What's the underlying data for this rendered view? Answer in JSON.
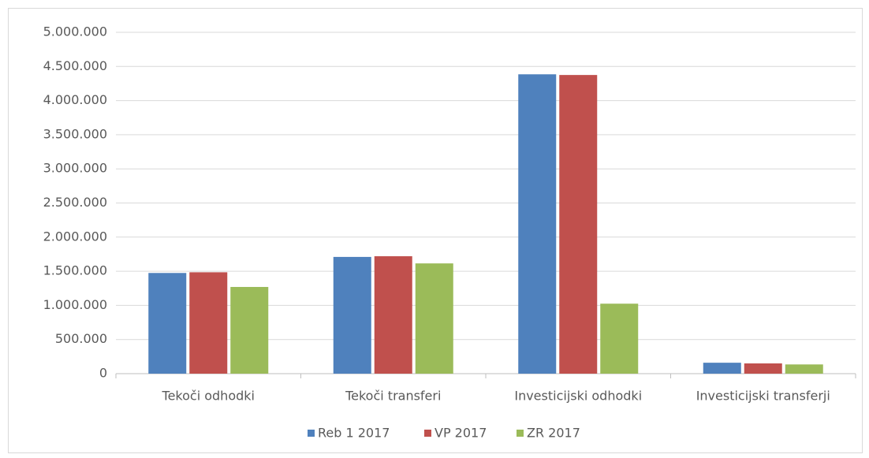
{
  "chart_data": {
    "type": "bar",
    "categories": [
      "Tekoči odhodki",
      "Tekoči transferi",
      "Investicijski odhodki",
      "Investicijski transferji"
    ],
    "series": [
      {
        "name": "Reb 1 2017",
        "color": "#4f81bd",
        "values": [
          1475000,
          1710000,
          4385000,
          160000
        ]
      },
      {
        "name": "VP 2017",
        "color": "#c0504d",
        "values": [
          1485000,
          1720000,
          4375000,
          150000
        ]
      },
      {
        "name": "ZR 2017",
        "color": "#9bbb59",
        "values": [
          1270000,
          1615000,
          1025000,
          135000
        ]
      }
    ],
    "ylim": [
      0,
      5000000
    ],
    "yticks": [
      0,
      {
        "value": 500000,
        "label": "500.000"
      },
      {
        "value": 1000000,
        "label": "1.000.000"
      },
      {
        "value": 1500000,
        "label": "1.500.000"
      },
      {
        "value": 2000000,
        "label": "2.000.000"
      },
      {
        "value": 2500000,
        "label": "2.500.000"
      },
      {
        "value": 3000000,
        "label": "3.000.000"
      },
      {
        "value": 3500000,
        "label": "3.500.000"
      },
      {
        "value": 4000000,
        "label": "4.000.000"
      },
      {
        "value": 4500000,
        "label": "4.500.000"
      },
      {
        "value": 5000000,
        "label": "5.000.000"
      }
    ],
    "grid": true,
    "legend": "bottom"
  }
}
